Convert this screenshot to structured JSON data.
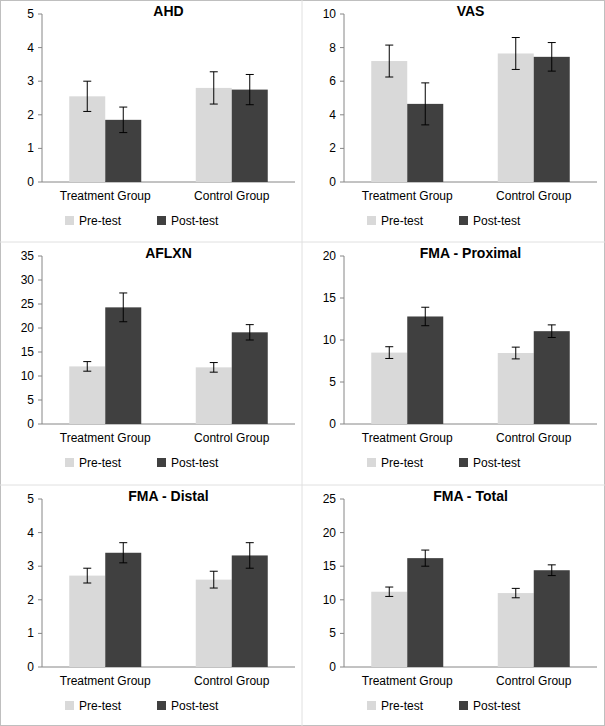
{
  "chart_data": [
    {
      "type": "bar",
      "title": "AHD",
      "categories": [
        "Treatment Group",
        "Control Group"
      ],
      "series": [
        {
          "name": "Pre-test",
          "color": "#d9d9d9",
          "values": [
            2.55,
            2.8
          ],
          "errors": [
            0.45,
            0.48
          ]
        },
        {
          "name": "Post-test",
          "color": "#404040",
          "values": [
            1.85,
            2.75
          ],
          "errors": [
            0.38,
            0.45
          ]
        }
      ],
      "ylim": [
        0,
        5
      ],
      "yticks": [
        0,
        1,
        2,
        3,
        4,
        5
      ],
      "legend": "bottom"
    },
    {
      "type": "bar",
      "title": "VAS",
      "categories": [
        "Treatment Group",
        "Control Group"
      ],
      "series": [
        {
          "name": "Pre-test",
          "color": "#d9d9d9",
          "values": [
            7.2,
            7.65
          ],
          "errors": [
            0.95,
            0.95
          ]
        },
        {
          "name": "Post-test",
          "color": "#404040",
          "values": [
            4.65,
            7.45
          ],
          "errors": [
            1.25,
            0.85
          ]
        }
      ],
      "ylim": [
        0,
        10
      ],
      "yticks": [
        0,
        2,
        4,
        6,
        8,
        10
      ],
      "legend": "bottom"
    },
    {
      "type": "bar",
      "title": "AFLXN",
      "categories": [
        "Treatment Group",
        "Control Group"
      ],
      "series": [
        {
          "name": "Pre-test",
          "color": "#d9d9d9",
          "values": [
            12.0,
            11.8
          ],
          "errors": [
            1.0,
            1.0
          ]
        },
        {
          "name": "Post-test",
          "color": "#404040",
          "values": [
            24.3,
            19.1
          ],
          "errors": [
            3.0,
            1.6
          ]
        }
      ],
      "ylim": [
        0,
        35
      ],
      "yticks": [
        0,
        5,
        10,
        15,
        20,
        25,
        30,
        35
      ],
      "legend": "bottom"
    },
    {
      "type": "bar",
      "title": "FMA - Proximal",
      "categories": [
        "Treatment Group",
        "Control Group"
      ],
      "series": [
        {
          "name": "Pre-test",
          "color": "#d9d9d9",
          "values": [
            8.5,
            8.45
          ],
          "errors": [
            0.7,
            0.7
          ]
        },
        {
          "name": "Post-test",
          "color": "#404040",
          "values": [
            12.8,
            11.05
          ],
          "errors": [
            1.1,
            0.75
          ]
        }
      ],
      "ylim": [
        0,
        20
      ],
      "yticks": [
        0,
        5,
        10,
        15,
        20
      ],
      "legend": "bottom"
    },
    {
      "type": "bar",
      "title": "FMA - Distal",
      "categories": [
        "Treatment Group",
        "Control Group"
      ],
      "series": [
        {
          "name": "Pre-test",
          "color": "#d9d9d9",
          "values": [
            2.72,
            2.6
          ],
          "errors": [
            0.22,
            0.25
          ]
        },
        {
          "name": "Post-test",
          "color": "#404040",
          "values": [
            3.4,
            3.32
          ],
          "errors": [
            0.3,
            0.38
          ]
        }
      ],
      "ylim": [
        0,
        5
      ],
      "yticks": [
        0,
        1,
        2,
        3,
        4,
        5
      ],
      "legend": "bottom"
    },
    {
      "type": "bar",
      "title": "FMA - Total",
      "categories": [
        "Treatment Group",
        "Control Group"
      ],
      "series": [
        {
          "name": "Pre-test",
          "color": "#d9d9d9",
          "values": [
            11.2,
            11.0
          ],
          "errors": [
            0.7,
            0.7
          ]
        },
        {
          "name": "Post-test",
          "color": "#404040",
          "values": [
            16.2,
            14.4
          ],
          "errors": [
            1.2,
            0.8
          ]
        }
      ],
      "ylim": [
        0,
        25
      ],
      "yticks": [
        0,
        5,
        10,
        15,
        20,
        25
      ],
      "legend": "bottom"
    }
  ]
}
